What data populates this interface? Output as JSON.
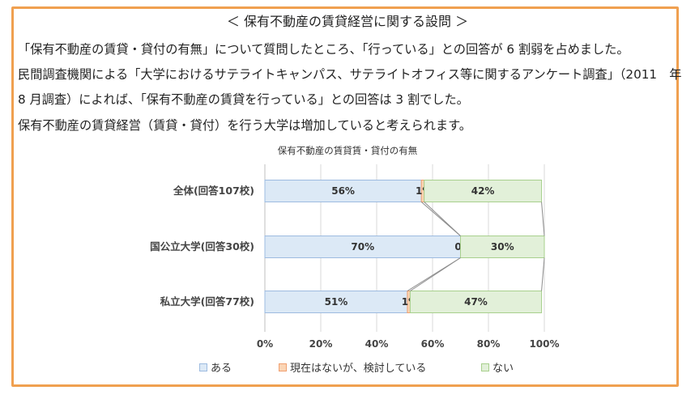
{
  "heading": "＜ 保有不動産の賃貸経営に関する設問 ＞",
  "paragraphs": [
    "「保有不動産の賃貸・貸付の有無」について質問したところ、「行っている」との回答が 6 割弱を占めました。",
    "民間調査機関による「大学におけるサテライトキャンパス、サテライトオフィス等に関するアンケート調査」（2011　年",
    "8 月調査）によれば、「保有不動産の賃貸を行っている」との回答は 3 割でした。",
    "保有不動産の賃貸経営（賃貸・貸付）を行う大学は増加していると考えられます。"
  ],
  "chart_data": {
    "type": "bar",
    "orientation": "horizontal",
    "stacked": "percent",
    "title": "保有不動産の賃貸賃・貸付の有無",
    "categories": [
      "全体(回答107校)",
      "国公立大学(回答30校)",
      "私立大学(回答77校)"
    ],
    "series": [
      {
        "name": "ある",
        "values": [
          56,
          70,
          51
        ],
        "labels": [
          "56%",
          "70%",
          "51%"
        ],
        "color": "#dce9f6",
        "border": "#9dbbe0"
      },
      {
        "name": "現在はないが、検討している",
        "values": [
          1,
          0,
          1
        ],
        "labels": [
          "1%",
          "0%",
          "1%"
        ],
        "color": "#fbd5b5",
        "border": "#f0a070"
      },
      {
        "name": "ない",
        "values": [
          42,
          30,
          47
        ],
        "labels": [
          "42%",
          "30%",
          "47%"
        ],
        "color": "#e2f0d9",
        "border": "#a8d08d"
      }
    ],
    "x_ticks": [
      "0%",
      "20%",
      "40%",
      "60%",
      "80%",
      "100%"
    ],
    "xlim": [
      0,
      100
    ],
    "grid": true,
    "series_lines": true,
    "legend_position": "bottom"
  }
}
